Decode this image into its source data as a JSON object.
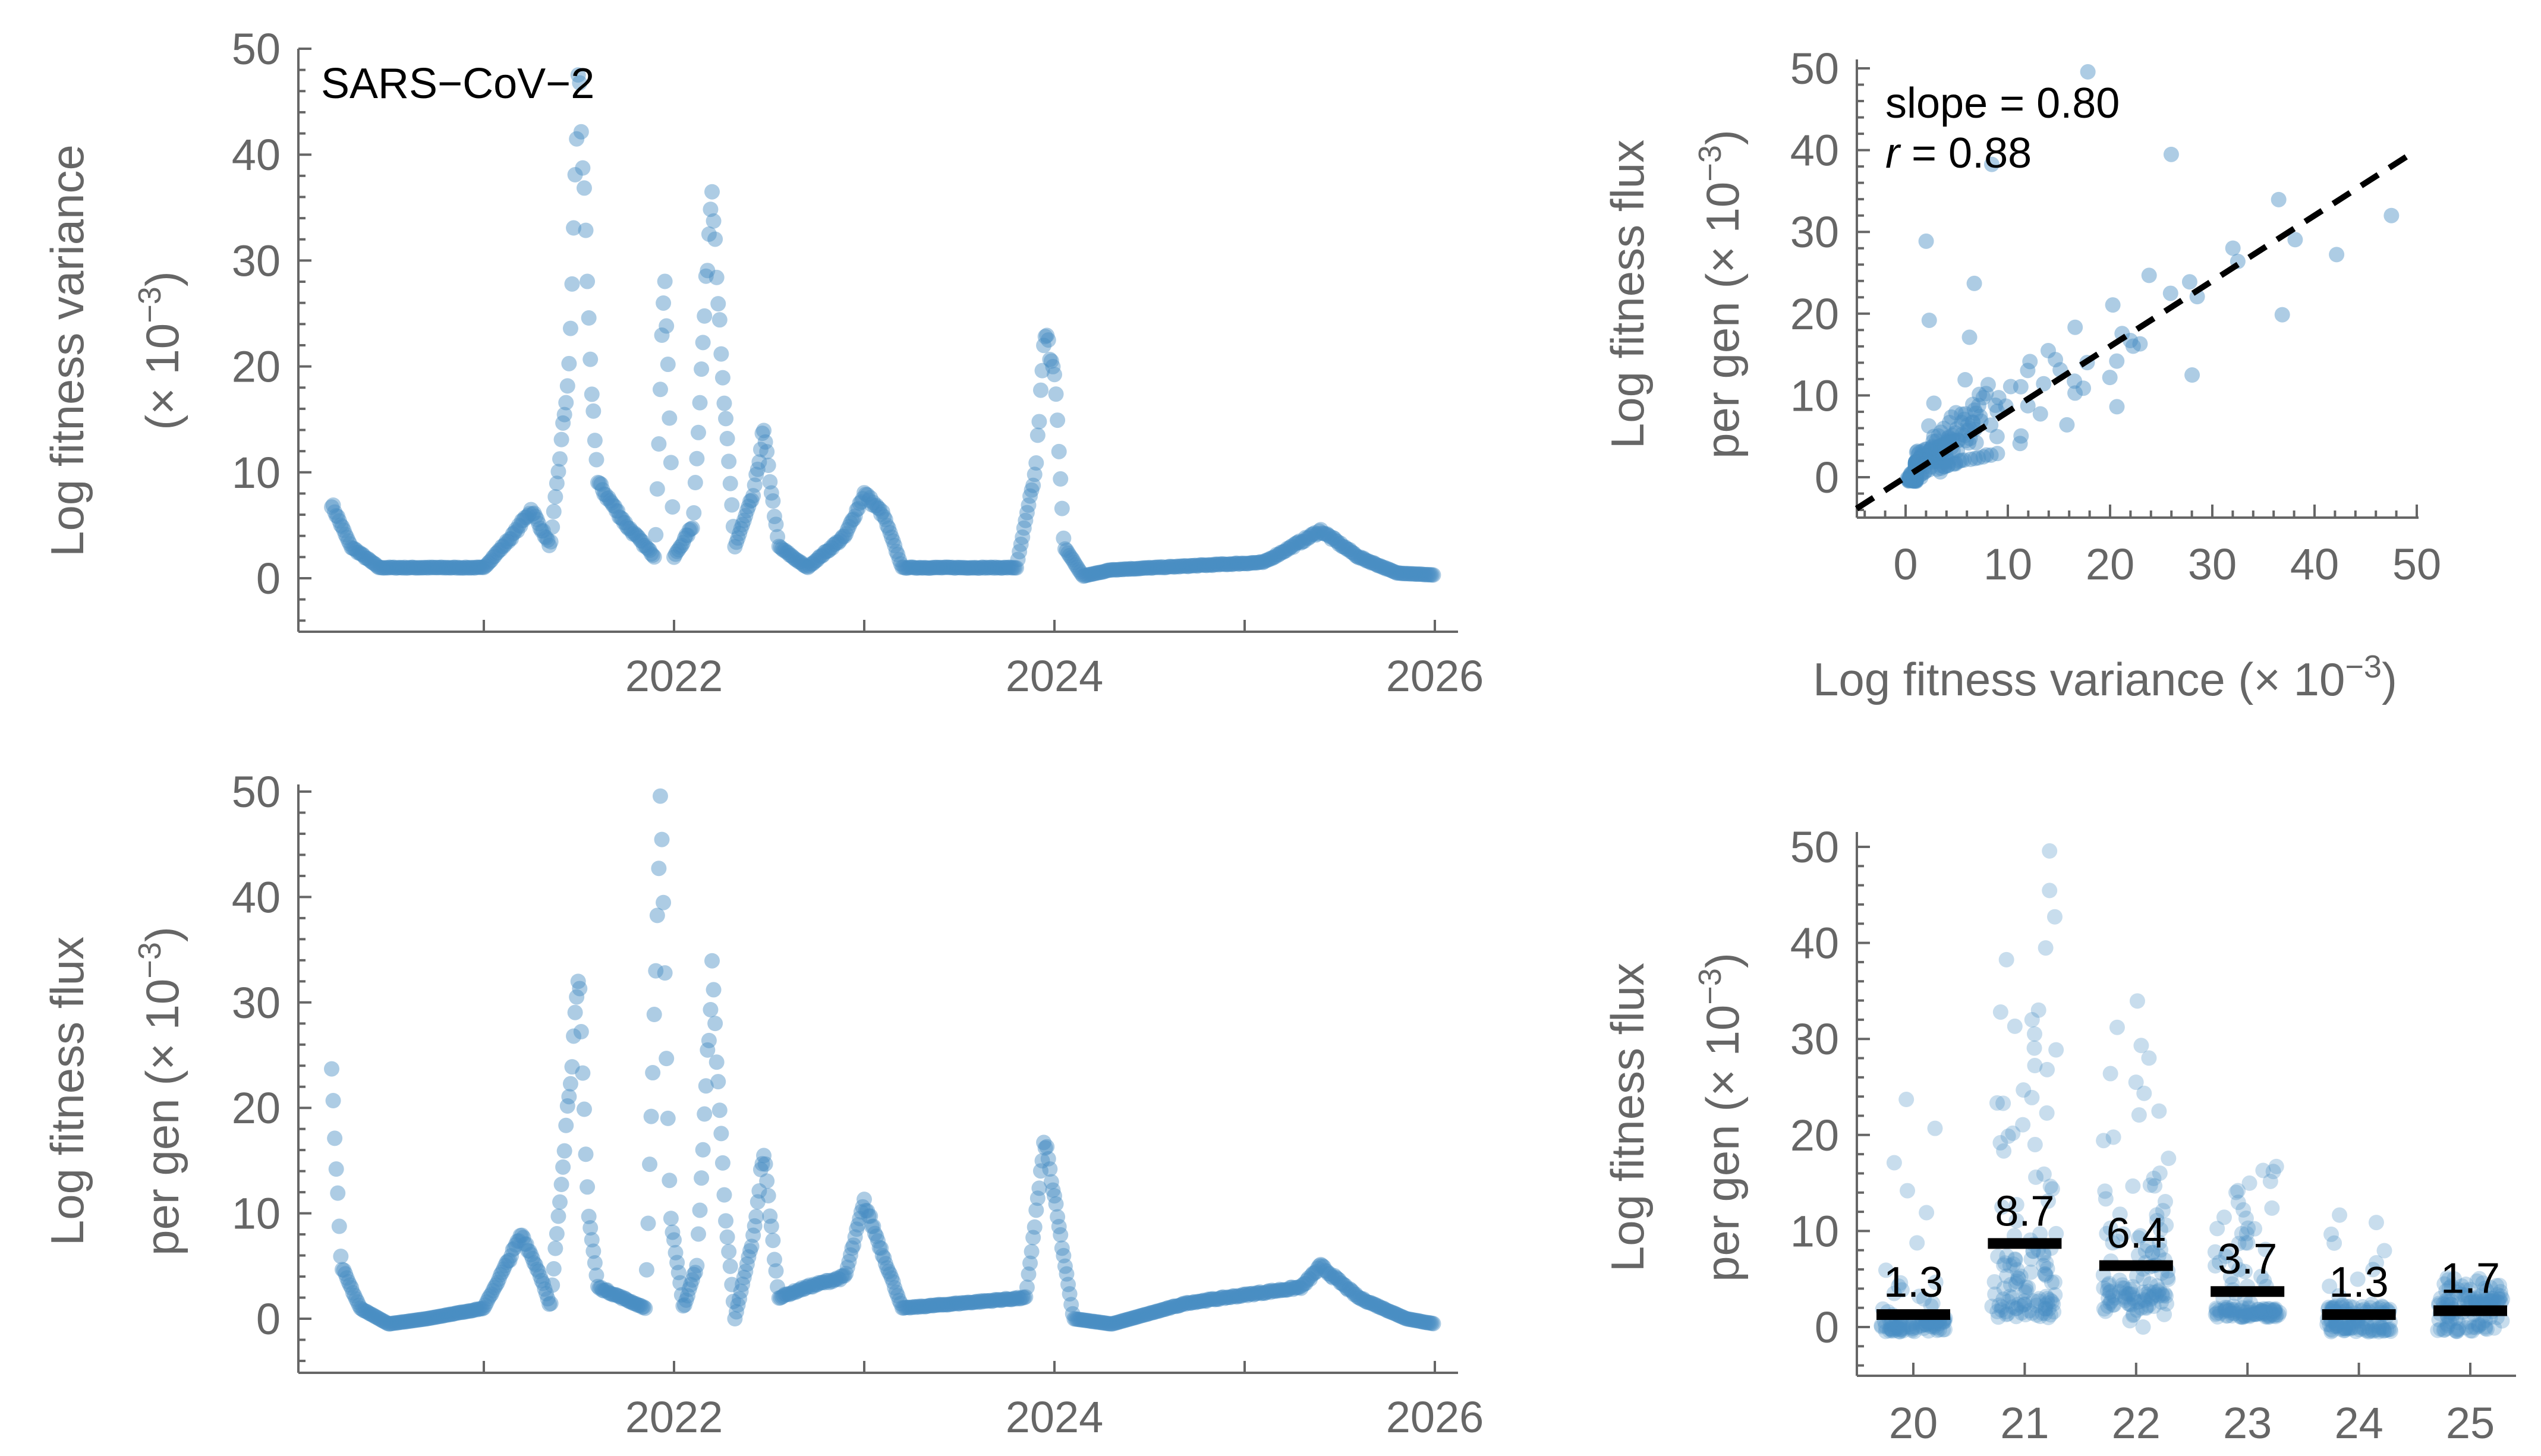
{
  "colors": {
    "point": "#4a8fc3",
    "axis": "#666666",
    "mean": "#000000"
  },
  "chart_data": [
    {
      "type": "scatter",
      "title": "SARS−CoV−2",
      "ylabel": [
        "Log fitness variance",
        "(× 10",
        "−3",
        ")"
      ],
      "xlabel": "",
      "xlim": [
        2020,
        2026
      ],
      "ylim": [
        -5,
        50
      ],
      "xticks": [
        "2022",
        "2024",
        "2026"
      ],
      "yticks": [
        "0",
        "10",
        "20",
        "30",
        "40",
        "50"
      ],
      "keypoints": [
        [
          2020.2,
          7
        ],
        [
          2020.3,
          3
        ],
        [
          2020.45,
          1
        ],
        [
          2021.0,
          1
        ],
        [
          2021.15,
          4
        ],
        [
          2021.25,
          6.5
        ],
        [
          2021.35,
          3
        ],
        [
          2021.45,
          20
        ],
        [
          2021.5,
          49
        ],
        [
          2021.56,
          20
        ],
        [
          2021.6,
          9
        ],
        [
          2021.75,
          5
        ],
        [
          2021.9,
          2
        ],
        [
          2021.95,
          30
        ],
        [
          2022.0,
          2
        ],
        [
          2022.1,
          5
        ],
        [
          2022.2,
          38
        ],
        [
          2022.25,
          20
        ],
        [
          2022.32,
          3
        ],
        [
          2022.42,
          8
        ],
        [
          2022.47,
          14
        ],
        [
          2022.55,
          3
        ],
        [
          2022.7,
          1
        ],
        [
          2022.9,
          4
        ],
        [
          2023.0,
          8
        ],
        [
          2023.1,
          6
        ],
        [
          2023.2,
          1
        ],
        [
          2023.8,
          1
        ],
        [
          2023.9,
          10
        ],
        [
          2023.95,
          23
        ],
        [
          2024.0,
          20
        ],
        [
          2024.05,
          3
        ],
        [
          2024.15,
          0.2
        ],
        [
          2024.3,
          0.8
        ],
        [
          2025.1,
          1.5
        ],
        [
          2025.4,
          4.5
        ],
        [
          2025.6,
          2
        ],
        [
          2025.8,
          0.5
        ],
        [
          2026.0,
          0.3
        ]
      ]
    },
    {
      "type": "scatter",
      "ylabel": [
        "Log fitness flux",
        "per gen (× 10",
        "−3",
        ")"
      ],
      "xlim": [
        2020,
        2026
      ],
      "ylim": [
        -5,
        50
      ],
      "xticks": [
        "2022",
        "2024",
        "2026"
      ],
      "yticks": [
        "0",
        "10",
        "20",
        "30",
        "40",
        "50"
      ],
      "keypoints": [
        [
          2020.2,
          23
        ],
        [
          2020.25,
          5
        ],
        [
          2020.35,
          1
        ],
        [
          2020.5,
          -0.5
        ],
        [
          2020.7,
          0
        ],
        [
          2021.0,
          1
        ],
        [
          2021.2,
          8
        ],
        [
          2021.3,
          4
        ],
        [
          2021.35,
          1
        ],
        [
          2021.45,
          22
        ],
        [
          2021.5,
          32
        ],
        [
          2021.55,
          10
        ],
        [
          2021.6,
          3
        ],
        [
          2021.85,
          1
        ],
        [
          2021.93,
          49
        ],
        [
          2021.98,
          10
        ],
        [
          2022.05,
          1
        ],
        [
          2022.12,
          5
        ],
        [
          2022.2,
          33
        ],
        [
          2022.27,
          10
        ],
        [
          2022.32,
          0
        ],
        [
          2022.42,
          8
        ],
        [
          2022.47,
          16
        ],
        [
          2022.55,
          2
        ],
        [
          2022.7,
          3
        ],
        [
          2022.9,
          4
        ],
        [
          2023.0,
          11
        ],
        [
          2023.1,
          6
        ],
        [
          2023.2,
          1
        ],
        [
          2023.85,
          2
        ],
        [
          2023.95,
          17
        ],
        [
          2024.03,
          8
        ],
        [
          2024.1,
          0
        ],
        [
          2024.3,
          -0.5
        ],
        [
          2024.7,
          1.5
        ],
        [
          2025.3,
          3
        ],
        [
          2025.4,
          5
        ],
        [
          2025.6,
          2
        ],
        [
          2025.85,
          0
        ],
        [
          2026.0,
          -0.5
        ]
      ]
    },
    {
      "type": "scatter",
      "xlabel": [
        "Log fitness variance (× 10",
        "−3",
        ")"
      ],
      "ylabel": [
        "Log fitness flux",
        "per gen (× 10",
        "−3",
        ")"
      ],
      "xlim": [
        -5,
        50
      ],
      "ylim": [
        -5,
        50
      ],
      "xticks": [
        "0",
        "10",
        "20",
        "30",
        "40",
        "50"
      ],
      "yticks": [
        "0",
        "10",
        "20",
        "30",
        "40",
        "50"
      ],
      "fit": {
        "slope": 0.8,
        "r": 0.88
      },
      "annotation": {
        "slope_label": "slope = 0.80",
        "r_symbol": "r",
        "r_value": " = 0.88"
      }
    },
    {
      "type": "strip",
      "ylabel": [
        "Log fitness flux",
        "per gen (× 10",
        "−3",
        ")"
      ],
      "categories": [
        "20",
        "21",
        "22",
        "23",
        "24",
        "25"
      ],
      "means": [
        1.3,
        8.7,
        6.4,
        3.7,
        1.3,
        1.7
      ],
      "mean_labels": [
        "1.3",
        "8.7",
        "6.4",
        "3.7",
        "1.3",
        "1.7"
      ],
      "ylim": [
        -5,
        50
      ],
      "yticks": [
        "0",
        "10",
        "20",
        "30",
        "40",
        "50"
      ]
    }
  ]
}
